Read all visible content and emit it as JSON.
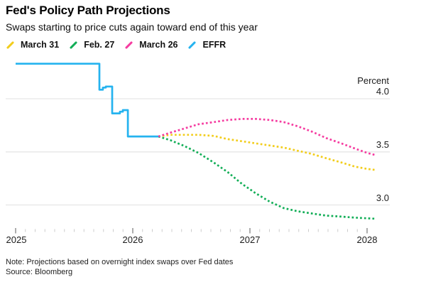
{
  "header": {
    "title": "Fed's Policy Path Projections",
    "subtitle": "Swaps starting to price cuts again toward end of this year"
  },
  "legend": {
    "items": [
      {
        "label": "March 31",
        "color": "#F2CD1C"
      },
      {
        "label": "Feb. 27",
        "color": "#12AE57"
      },
      {
        "label": "March 26",
        "color": "#F53CA0"
      },
      {
        "label": "EFFR",
        "color": "#25B3EF"
      }
    ]
  },
  "chart_data": {
    "type": "line",
    "unit_label": "Percent",
    "x_axis": {
      "ticklabels": [
        "2025",
        "2026",
        "2027",
        "2028"
      ],
      "tick_years": [
        2025,
        2026,
        2027,
        2028
      ],
      "minor_ticks": "monthly",
      "range": [
        2025.0,
        2028.07
      ]
    },
    "y_axis": {
      "ticklabels": [
        "4.0",
        "3.5",
        "3.0"
      ],
      "ticks": [
        4.0,
        3.5,
        3.0
      ],
      "grid": true,
      "side": "right"
    },
    "series": [
      {
        "name": "March 31",
        "color": "#F2CD1C",
        "style": "dotted",
        "points": [
          [
            2026.218,
            3.645
          ],
          [
            2026.32,
            3.66
          ],
          [
            2026.44,
            3.66
          ],
          [
            2026.56,
            3.66
          ],
          [
            2026.69,
            3.65
          ],
          [
            2026.81,
            3.62
          ],
          [
            2026.93,
            3.6
          ],
          [
            2027.05,
            3.58
          ],
          [
            2027.17,
            3.56
          ],
          [
            2027.29,
            3.54
          ],
          [
            2027.41,
            3.51
          ],
          [
            2027.53,
            3.48
          ],
          [
            2027.65,
            3.44
          ],
          [
            2027.78,
            3.4
          ],
          [
            2027.9,
            3.36
          ],
          [
            2028.0,
            3.34
          ],
          [
            2028.07,
            3.33
          ]
        ]
      },
      {
        "name": "Feb. 27",
        "color": "#12AE57",
        "style": "dotted",
        "points": [
          [
            2026.218,
            3.645
          ],
          [
            2026.32,
            3.61
          ],
          [
            2026.44,
            3.555
          ],
          [
            2026.56,
            3.49
          ],
          [
            2026.69,
            3.4
          ],
          [
            2026.81,
            3.31
          ],
          [
            2026.93,
            3.2
          ],
          [
            2027.05,
            3.11
          ],
          [
            2027.17,
            3.03
          ],
          [
            2027.29,
            2.97
          ],
          [
            2027.41,
            2.94
          ],
          [
            2027.53,
            2.92
          ],
          [
            2027.65,
            2.9
          ],
          [
            2027.78,
            2.89
          ],
          [
            2027.9,
            2.88
          ],
          [
            2028.07,
            2.87
          ]
        ]
      },
      {
        "name": "March 26",
        "color": "#F53CA0",
        "style": "dotted",
        "points": [
          [
            2026.218,
            3.645
          ],
          [
            2026.32,
            3.68
          ],
          [
            2026.44,
            3.72
          ],
          [
            2026.56,
            3.76
          ],
          [
            2026.69,
            3.78
          ],
          [
            2026.81,
            3.8
          ],
          [
            2026.93,
            3.81
          ],
          [
            2027.05,
            3.81
          ],
          [
            2027.17,
            3.8
          ],
          [
            2027.29,
            3.78
          ],
          [
            2027.41,
            3.74
          ],
          [
            2027.53,
            3.69
          ],
          [
            2027.65,
            3.63
          ],
          [
            2027.78,
            3.58
          ],
          [
            2027.9,
            3.53
          ],
          [
            2028.0,
            3.49
          ],
          [
            2028.07,
            3.47
          ]
        ]
      },
      {
        "name": "EFFR",
        "color": "#25B3EF",
        "style": "solid",
        "points": [
          [
            2025.0,
            4.33
          ],
          [
            2025.715,
            4.33
          ],
          [
            2025.715,
            4.085
          ],
          [
            2025.745,
            4.085
          ],
          [
            2025.745,
            4.105
          ],
          [
            2025.77,
            4.105
          ],
          [
            2025.77,
            4.115
          ],
          [
            2025.824,
            4.115
          ],
          [
            2025.824,
            3.862
          ],
          [
            2025.89,
            3.862
          ],
          [
            2025.89,
            3.878
          ],
          [
            2025.915,
            3.878
          ],
          [
            2025.915,
            3.893
          ],
          [
            2025.958,
            3.893
          ],
          [
            2025.958,
            3.645
          ],
          [
            2026.218,
            3.645
          ]
        ]
      }
    ]
  },
  "footer": {
    "note": "Note: Projections based on overnight index swaps over Fed dates",
    "source": "Source: Bloomberg"
  }
}
